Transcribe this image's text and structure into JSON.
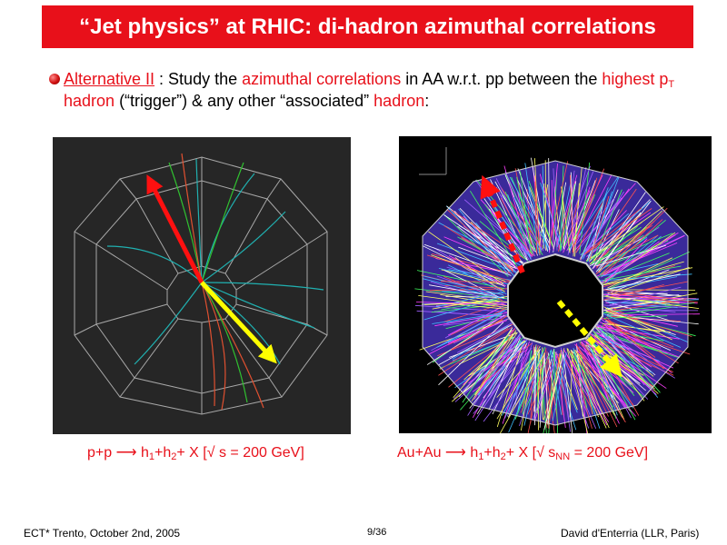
{
  "slide": {
    "title": "“Jet physics” at RHIC: di-hadron azimuthal correlations",
    "bullet": {
      "alt": "Alternative II",
      "t1": " : Study the ",
      "az": "azimuthal correlations",
      "t2": " in AA w.r.t. pp between the ",
      "highest": "highest p",
      "T": "T",
      "hadron": " hadron",
      "trigger": " (“trigger”) & any other “associated” ",
      "hadron2": "hadron",
      "colon": ":"
    },
    "caption_pp": {
      "a": "p+p ⟶ h",
      "s1": "1",
      "b": "+h",
      "s2": "2",
      "c": "+ X  [√ s = 200 GeV]"
    },
    "caption_au": {
      "a": "Au+Au ⟶ h",
      "s1": "1",
      "b": "+h",
      "s2": "2",
      "c": "+ X [√ s",
      "s3": "NN",
      "d": " = 200 GeV]"
    },
    "footer": {
      "left": "ECT* Trento, October 2nd, 2005",
      "middle": "9/36",
      "right": "David d'Enterria (LLR, Paris)"
    }
  },
  "colors": {
    "accent": "#e8101a",
    "trigger_arrow": "#ff0000",
    "associated_arrow": "#ffff00"
  }
}
